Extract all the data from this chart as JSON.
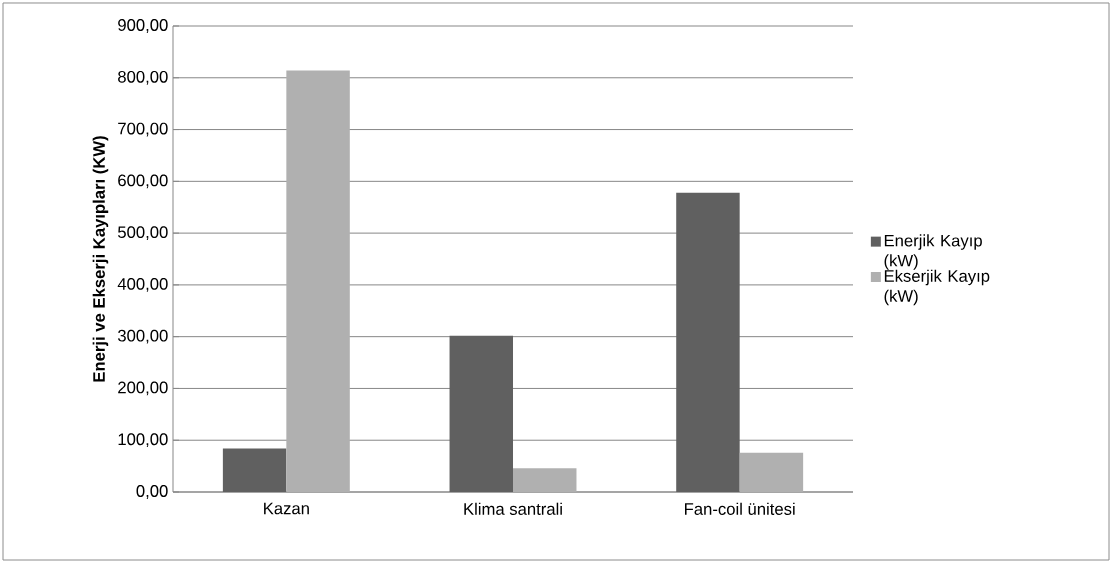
{
  "chart_data": {
    "type": "bar",
    "ylabel": "Enerji ve Ekserji Kayıpları (KW)",
    "categories": [
      "Kazan",
      "Klima santrali",
      "Fan-coil ünitesi"
    ],
    "series": [
      {
        "name": "Enerjik Kayıp (kW)",
        "color": "#606060",
        "values": [
          84,
          302,
          578
        ]
      },
      {
        "name": "Ekserjik Kayıp (kW)",
        "color": "#b0b0b0",
        "values": [
          814,
          46,
          76
        ]
      }
    ],
    "ylim": [
      0,
      900
    ],
    "yticks": [
      {
        "value": 0,
        "label": "0,00"
      },
      {
        "value": 100,
        "label": "100,00"
      },
      {
        "value": 200,
        "label": "200,00"
      },
      {
        "value": 300,
        "label": "300,00"
      },
      {
        "value": 400,
        "label": "400,00"
      },
      {
        "value": 500,
        "label": "500,00"
      },
      {
        "value": 600,
        "label": "600,00"
      },
      {
        "value": 700,
        "label": "700,00"
      },
      {
        "value": 800,
        "label": "800,00"
      },
      {
        "value": 900,
        "label": "900,00"
      }
    ],
    "grid": "y",
    "legend": "right"
  }
}
